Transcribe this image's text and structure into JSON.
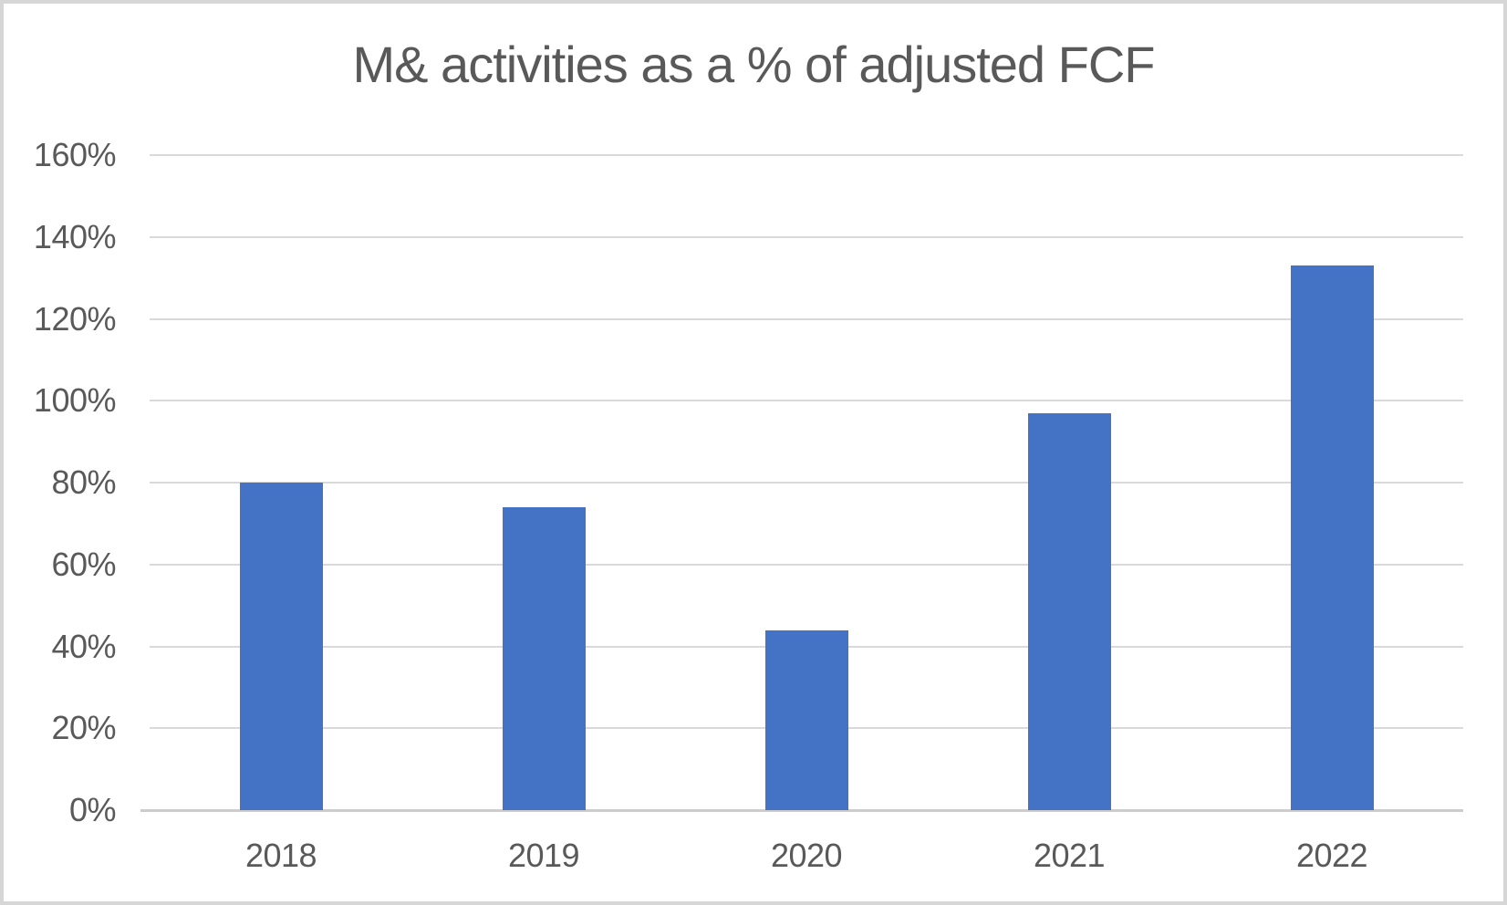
{
  "chart_data": {
    "type": "bar",
    "title": "M& activities as a % of adjusted FCF",
    "categories": [
      "2018",
      "2019",
      "2020",
      "2021",
      "2022"
    ],
    "values": [
      80,
      74,
      44,
      97,
      133
    ],
    "unit": "%",
    "xlabel": "",
    "ylabel": "",
    "ylim": [
      0,
      160
    ],
    "ytick_step": 20,
    "ytick_labels": [
      "0%",
      "20%",
      "40%",
      "60%",
      "80%",
      "100%",
      "120%",
      "140%",
      "160%"
    ],
    "grid": "horizontal gridlines on",
    "legend": "none",
    "colors": {
      "bar": "#4472c4",
      "gridline": "#d9d9d9",
      "axis_line": "#cccccc",
      "title_text": "#595959",
      "label_text": "#595959",
      "frame_border": "#d6d6d6",
      "background": "#ffffff"
    }
  }
}
